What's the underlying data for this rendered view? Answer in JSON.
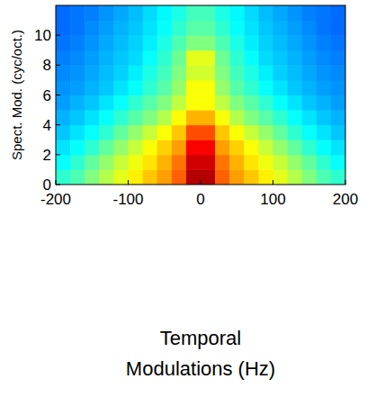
{
  "chart_data": {
    "type": "heatmap",
    "x_label": "Temporal Modulations (Hz)",
    "y_label": "Spect. Mod. (cyc/oct.)",
    "xlim": [
      -200,
      200
    ],
    "ylim": [
      0,
      12
    ],
    "xticks": [
      -200,
      -100,
      0,
      100,
      200
    ],
    "yticks": [
      0,
      2,
      4,
      6,
      8,
      10
    ],
    "xbins": [
      -200,
      -180,
      -160,
      -140,
      -120,
      -100,
      -80,
      -60,
      -40,
      -20,
      0,
      20,
      40,
      60,
      80,
      100,
      120,
      140,
      160,
      180,
      200
    ],
    "ybins": [
      0,
      1,
      2,
      3,
      4,
      5,
      6,
      7,
      8,
      9,
      10,
      11,
      12
    ],
    "zlim": [
      0,
      1
    ],
    "values": [
      [
        0.42,
        0.45,
        0.5,
        0.55,
        0.6,
        0.64,
        0.68,
        0.72,
        0.78,
        0.95,
        0.95,
        0.78,
        0.72,
        0.68,
        0.64,
        0.6,
        0.55,
        0.5,
        0.45,
        0.42
      ],
      [
        0.38,
        0.42,
        0.47,
        0.52,
        0.57,
        0.61,
        0.65,
        0.7,
        0.76,
        0.92,
        0.92,
        0.76,
        0.7,
        0.65,
        0.61,
        0.57,
        0.52,
        0.47,
        0.42,
        0.38
      ],
      [
        0.35,
        0.38,
        0.42,
        0.47,
        0.52,
        0.57,
        0.62,
        0.67,
        0.72,
        0.88,
        0.88,
        0.72,
        0.67,
        0.62,
        0.57,
        0.52,
        0.47,
        0.42,
        0.38,
        0.35
      ],
      [
        0.32,
        0.35,
        0.38,
        0.42,
        0.47,
        0.52,
        0.57,
        0.62,
        0.68,
        0.8,
        0.8,
        0.68,
        0.62,
        0.57,
        0.52,
        0.47,
        0.42,
        0.38,
        0.35,
        0.32
      ],
      [
        0.3,
        0.32,
        0.35,
        0.38,
        0.42,
        0.46,
        0.5,
        0.55,
        0.62,
        0.7,
        0.7,
        0.62,
        0.55,
        0.5,
        0.46,
        0.42,
        0.38,
        0.35,
        0.32,
        0.3
      ],
      [
        0.28,
        0.3,
        0.32,
        0.35,
        0.38,
        0.42,
        0.46,
        0.5,
        0.56,
        0.62,
        0.62,
        0.56,
        0.5,
        0.46,
        0.42,
        0.38,
        0.35,
        0.32,
        0.3,
        0.28
      ],
      [
        0.27,
        0.28,
        0.3,
        0.32,
        0.35,
        0.38,
        0.42,
        0.46,
        0.52,
        0.62,
        0.62,
        0.52,
        0.46,
        0.42,
        0.38,
        0.35,
        0.32,
        0.3,
        0.28,
        0.27
      ],
      [
        0.26,
        0.27,
        0.29,
        0.31,
        0.33,
        0.36,
        0.4,
        0.44,
        0.5,
        0.58,
        0.58,
        0.5,
        0.44,
        0.4,
        0.36,
        0.33,
        0.31,
        0.29,
        0.27,
        0.26
      ],
      [
        0.25,
        0.26,
        0.28,
        0.3,
        0.32,
        0.34,
        0.38,
        0.42,
        0.48,
        0.6,
        0.6,
        0.48,
        0.42,
        0.38,
        0.34,
        0.32,
        0.3,
        0.28,
        0.26,
        0.25
      ],
      [
        0.24,
        0.25,
        0.27,
        0.29,
        0.31,
        0.33,
        0.36,
        0.4,
        0.45,
        0.5,
        0.5,
        0.45,
        0.4,
        0.36,
        0.33,
        0.31,
        0.29,
        0.27,
        0.25,
        0.24
      ],
      [
        0.23,
        0.24,
        0.26,
        0.28,
        0.3,
        0.32,
        0.35,
        0.38,
        0.42,
        0.46,
        0.46,
        0.42,
        0.38,
        0.35,
        0.32,
        0.3,
        0.28,
        0.26,
        0.24,
        0.23
      ],
      [
        0.23,
        0.24,
        0.25,
        0.27,
        0.29,
        0.31,
        0.34,
        0.37,
        0.4,
        0.44,
        0.44,
        0.4,
        0.37,
        0.34,
        0.31,
        0.29,
        0.27,
        0.25,
        0.24,
        0.23
      ]
    ]
  }
}
